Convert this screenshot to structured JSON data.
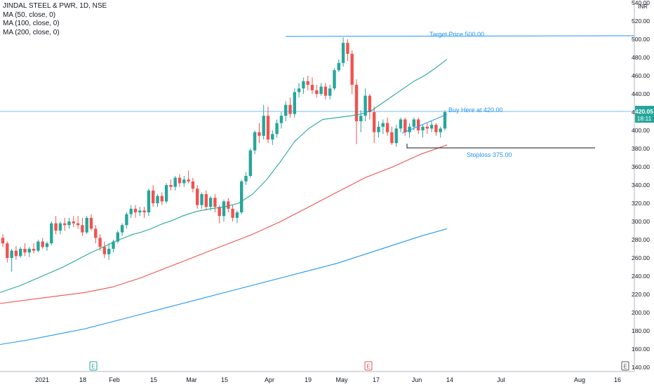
{
  "legend": {
    "title": "JINDAL STEEL & PWR, 1D, NSE",
    "ma50": "MA (50, close, 0)",
    "ma100": "MA (100, close, 0)",
    "ma200": "MA (200, close, 0)"
  },
  "price_axis": {
    "currency": "INR",
    "last_price_label": "420.05",
    "countdown_label": "18:11"
  },
  "annotations": {
    "target": "Target Price 500.00",
    "buy": "Buy Here at 420.00",
    "stop": "Stoploss 375.00"
  },
  "event_markers": [
    "E",
    "E",
    "E"
  ],
  "colors": {
    "up": "#26a69a",
    "down": "#ef5350",
    "ma50": "#26a69a",
    "ma100": "#ef5350",
    "ma200": "#2196f3",
    "line": "#2196f3",
    "axis_text": "#131722",
    "grid": "#f0f3fa"
  },
  "chart_data": {
    "type": "candlestick",
    "title": "JINDAL STEEL & PWR, 1D, NSE",
    "ylim": [
      130,
      540
    ],
    "y_ticks": [
      140,
      160,
      180,
      200,
      220,
      240,
      260,
      280,
      300,
      320,
      340,
      360,
      380,
      400,
      420,
      440,
      460,
      480,
      500,
      520,
      540
    ],
    "x_ticks": [
      "2021",
      "18",
      "Feb",
      "15",
      "Mar",
      "15",
      "Apr",
      "19",
      "May",
      "17",
      "Jun",
      "14",
      "Jul",
      "Aug",
      "16"
    ],
    "grid": false,
    "levels": {
      "target": 500,
      "buy": 420,
      "stoploss": 375
    },
    "candles": [
      [
        282,
        286,
        272,
        276
      ],
      [
        276,
        278,
        255,
        260
      ],
      [
        260,
        270,
        245,
        268
      ],
      [
        268,
        273,
        258,
        262
      ],
      [
        262,
        272,
        260,
        270
      ],
      [
        270,
        276,
        262,
        266
      ],
      [
        266,
        272,
        261,
        270
      ],
      [
        270,
        276,
        265,
        268
      ],
      [
        268,
        280,
        266,
        278
      ],
      [
        278,
        282,
        270,
        272
      ],
      [
        272,
        278,
        268,
        276
      ],
      [
        276,
        300,
        274,
        298
      ],
      [
        298,
        306,
        286,
        290
      ],
      [
        290,
        300,
        286,
        298
      ],
      [
        298,
        304,
        290,
        296
      ],
      [
        296,
        304,
        292,
        300
      ],
      [
        300,
        306,
        294,
        298
      ],
      [
        298,
        306,
        292,
        296
      ],
      [
        296,
        304,
        284,
        288
      ],
      [
        288,
        306,
        286,
        304
      ],
      [
        304,
        308,
        290,
        292
      ],
      [
        292,
        296,
        276,
        282
      ],
      [
        282,
        286,
        268,
        272
      ],
      [
        272,
        278,
        260,
        264
      ],
      [
        264,
        276,
        258,
        270
      ],
      [
        270,
        280,
        266,
        278
      ],
      [
        278,
        290,
        276,
        288
      ],
      [
        288,
        298,
        284,
        296
      ],
      [
        296,
        310,
        292,
        308
      ],
      [
        308,
        318,
        304,
        314
      ],
      [
        314,
        318,
        304,
        310
      ],
      [
        310,
        316,
        306,
        312
      ],
      [
        312,
        316,
        304,
        310
      ],
      [
        310,
        336,
        306,
        334
      ],
      [
        334,
        340,
        316,
        320
      ],
      [
        320,
        330,
        316,
        328
      ],
      [
        328,
        332,
        318,
        322
      ],
      [
        322,
        342,
        320,
        340
      ],
      [
        340,
        346,
        334,
        338
      ],
      [
        338,
        350,
        334,
        348
      ],
      [
        348,
        352,
        338,
        342
      ],
      [
        342,
        350,
        338,
        346
      ],
      [
        346,
        356,
        342,
        344
      ],
      [
        344,
        348,
        332,
        336
      ],
      [
        336,
        340,
        314,
        318
      ],
      [
        318,
        332,
        314,
        330
      ],
      [
        330,
        334,
        312,
        316
      ],
      [
        316,
        328,
        312,
        326
      ],
      [
        326,
        330,
        310,
        316
      ],
      [
        316,
        318,
        298,
        306
      ],
      [
        306,
        324,
        300,
        322
      ],
      [
        322,
        326,
        310,
        314
      ],
      [
        314,
        318,
        300,
        304
      ],
      [
        304,
        312,
        298,
        310
      ],
      [
        310,
        346,
        308,
        344
      ],
      [
        344,
        354,
        340,
        350
      ],
      [
        350,
        380,
        348,
        378
      ],
      [
        378,
        400,
        374,
        398
      ],
      [
        398,
        408,
        386,
        394
      ],
      [
        394,
        428,
        390,
        416
      ],
      [
        416,
        426,
        386,
        390
      ],
      [
        390,
        400,
        384,
        396
      ],
      [
        396,
        412,
        392,
        408
      ],
      [
        408,
        420,
        402,
        416
      ],
      [
        416,
        432,
        410,
        428
      ],
      [
        428,
        436,
        414,
        418
      ],
      [
        418,
        446,
        414,
        442
      ],
      [
        442,
        452,
        436,
        446
      ],
      [
        446,
        458,
        440,
        454
      ],
      [
        454,
        460,
        444,
        450
      ],
      [
        450,
        458,
        440,
        444
      ],
      [
        444,
        450,
        436,
        440
      ],
      [
        440,
        452,
        438,
        448
      ],
      [
        448,
        452,
        434,
        438
      ],
      [
        438,
        450,
        434,
        446
      ],
      [
        446,
        468,
        444,
        466
      ],
      [
        466,
        478,
        464,
        474
      ],
      [
        474,
        502,
        470,
        496
      ],
      [
        496,
        500,
        476,
        484
      ],
      [
        484,
        488,
        440,
        450
      ],
      [
        450,
        456,
        385,
        410
      ],
      [
        410,
        422,
        398,
        416
      ],
      [
        416,
        446,
        410,
        438
      ],
      [
        438,
        440,
        412,
        420
      ],
      [
        420,
        426,
        386,
        398
      ],
      [
        398,
        410,
        392,
        404
      ],
      [
        404,
        412,
        396,
        408
      ],
      [
        408,
        414,
        394,
        398
      ],
      [
        398,
        404,
        384,
        386
      ],
      [
        386,
        406,
        382,
        402
      ],
      [
        402,
        414,
        398,
        412
      ],
      [
        412,
        414,
        394,
        398
      ],
      [
        398,
        408,
        392,
        404
      ],
      [
        404,
        414,
        400,
        412
      ],
      [
        412,
        414,
        396,
        400
      ],
      [
        400,
        406,
        392,
        404
      ],
      [
        404,
        408,
        396,
        402
      ],
      [
        402,
        410,
        398,
        406
      ],
      [
        406,
        408,
        394,
        398
      ],
      [
        398,
        404,
        392,
        402
      ],
      [
        402,
        422,
        400,
        420
      ]
    ],
    "series": [
      {
        "name": "MA (50, close, 0)",
        "x": [
          0,
          30,
          60,
          90,
          110,
          130,
          150,
          170,
          190,
          200,
          215,
          230,
          245,
          260,
          280,
          300,
          320,
          340,
          360,
          380,
          400,
          420,
          440,
          460,
          480,
          500,
          515,
          530,
          545,
          560,
          575,
          590,
          605,
          620,
          637
        ],
        "y": [
          222,
          230,
          240,
          250,
          258,
          266,
          273,
          280,
          286,
          288,
          292,
          297,
          301,
          306,
          311,
          314,
          316,
          320,
          330,
          346,
          366,
          388,
          402,
          412,
          414,
          416,
          418,
          422,
          430,
          438,
          446,
          454,
          460,
          468,
          478
        ]
      },
      {
        "name": "MA (100, close, 0)",
        "x": [
          0,
          40,
          80,
          120,
          160,
          200,
          240,
          280,
          320,
          360,
          400,
          440,
          480,
          520,
          560,
          600,
          637
        ],
        "y": [
          210,
          214,
          218,
          222,
          228,
          238,
          250,
          262,
          274,
          286,
          300,
          316,
          332,
          348,
          360,
          374,
          384
        ]
      },
      {
        "name": "MA (200, close, 0)",
        "x": [
          0,
          40,
          80,
          120,
          160,
          200,
          240,
          280,
          320,
          360,
          400,
          440,
          480,
          520,
          560,
          600,
          637
        ],
        "y": [
          165,
          170,
          176,
          182,
          190,
          198,
          206,
          214,
          222,
          230,
          238,
          246,
          254,
          264,
          274,
          284,
          292
        ]
      }
    ]
  }
}
